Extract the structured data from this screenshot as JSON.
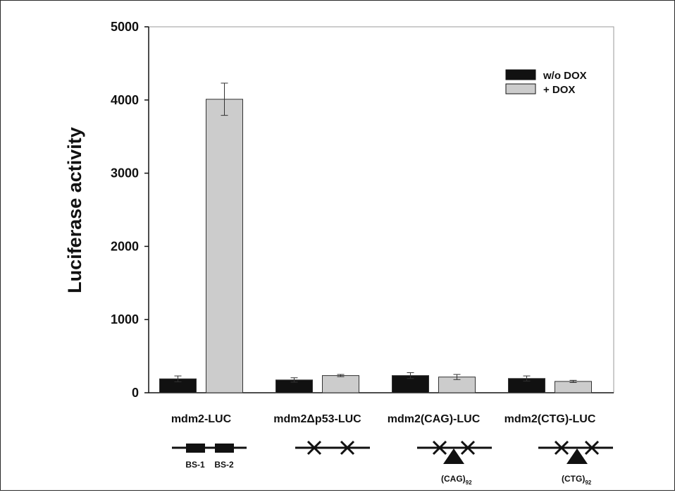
{
  "chart_data": {
    "type": "bar",
    "ylabel": "Luciferase activity",
    "xlabel": "",
    "ylim": [
      0,
      5000
    ],
    "yticks": [
      "0",
      "1000",
      "2000",
      "3000",
      "4000",
      "5000"
    ],
    "categories": [
      "mdm2-LUC",
      "mdm2Δp53-LUC",
      "mdm2(CAG)-LUC",
      "mdm2(CTG)-LUC"
    ],
    "series": [
      {
        "name": "w/o DOX",
        "color": "#111111",
        "values": [
          190,
          175,
          235,
          195
        ],
        "errors": [
          40,
          30,
          40,
          35
        ]
      },
      {
        "name": "+ DOX",
        "color": "#cccccc",
        "values": [
          4010,
          235,
          215,
          155
        ],
        "errors": [
          220,
          15,
          35,
          15
        ]
      }
    ],
    "legend_position": "top-right",
    "grid": false
  },
  "diagrams": {
    "binding_sites": [
      "BS-1",
      "BS-2"
    ],
    "repeat_labels": [
      {
        "base": "(CAG)",
        "sub": "92"
      },
      {
        "base": "(CTG)",
        "sub": "92"
      }
    ]
  }
}
